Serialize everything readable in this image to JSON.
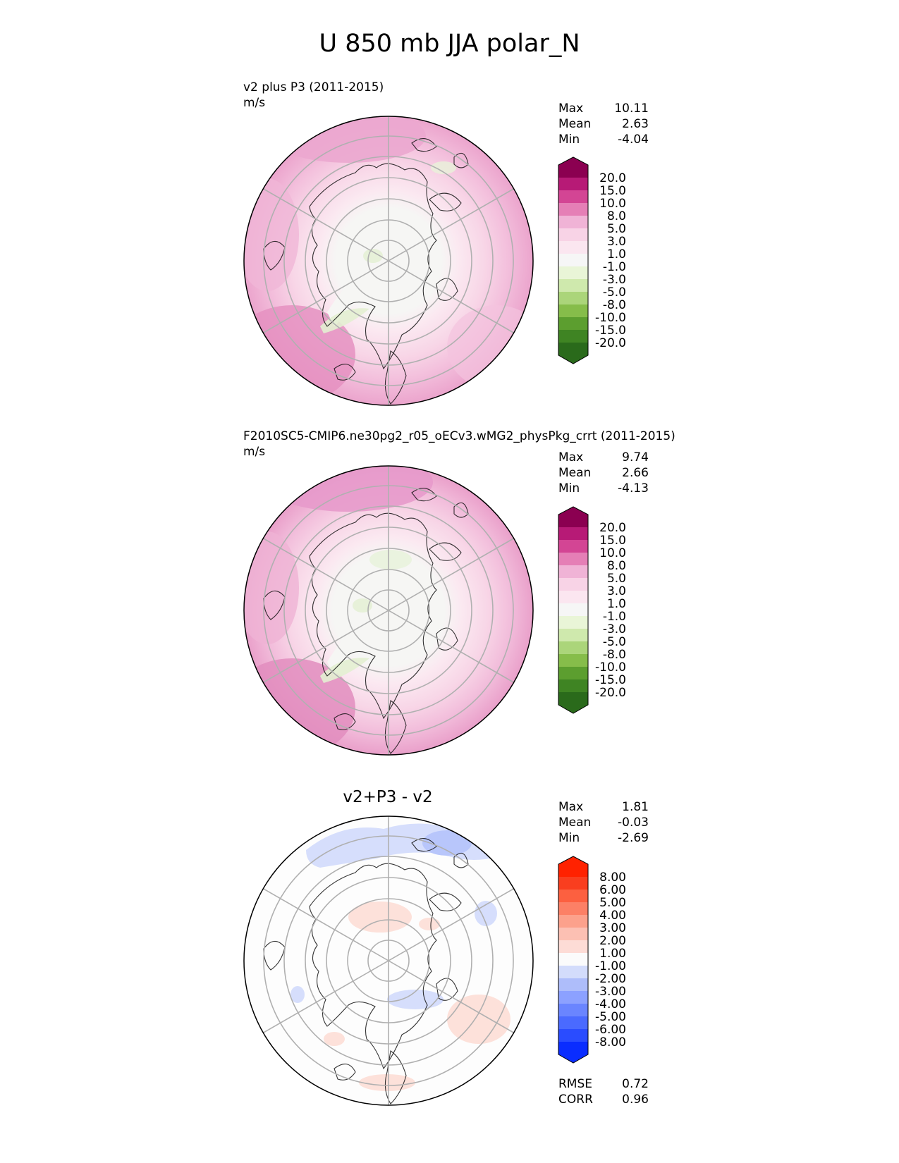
{
  "figure": {
    "title": "U 850 mb JJA polar_N"
  },
  "panels": [
    {
      "id": "test",
      "subtitle": "v2 plus P3 (2011-2015)",
      "units": "m/s",
      "stats": {
        "max_label": "Max",
        "max": "10.11",
        "mean_label": "Mean",
        "mean": "2.63",
        "min_label": "Min",
        "min": "-4.04"
      },
      "colorbar": {
        "colors": [
          "#276419",
          "#4d9221",
          "#7fbc41",
          "#b8e186",
          "#e6f5d0",
          "#f7f7f7",
          "#fde0ef",
          "#f1b6da",
          "#de77ae",
          "#c51b7d",
          "#8e0152"
        ],
        "bands": [
          "#2a6a1b",
          "#3f8423",
          "#5c9e2f",
          "#86bd4a",
          "#abd57a",
          "#cfe9ad",
          "#e9f5d7",
          "#f6f6f6",
          "#fbe6f0",
          "#f8d3e6",
          "#f0b3d6",
          "#e57fb6",
          "#d34594",
          "#b71a76",
          "#8b0051"
        ],
        "labels": [
          "20.0",
          "15.0",
          "10.0",
          "8.0",
          "5.0",
          "3.0",
          "1.0",
          "-1.0",
          "-3.0",
          "-5.0",
          "-8.0",
          "-10.0",
          "-15.0",
          "-20.0"
        ]
      }
    },
    {
      "id": "reference",
      "subtitle": "F2010SC5-CMIP6.ne30pg2_r05_oECv3.wMG2_physPkg_crrt (2011-2015)",
      "units": "m/s",
      "stats": {
        "max_label": "Max",
        "max": "9.74",
        "mean_label": "Mean",
        "mean": "2.66",
        "min_label": "Min",
        "min": "-4.13"
      },
      "colorbar": {
        "bands": [
          "#2a6a1b",
          "#3f8423",
          "#5c9e2f",
          "#86bd4a",
          "#abd57a",
          "#cfe9ad",
          "#e9f5d7",
          "#f6f6f6",
          "#fbe6f0",
          "#f8d3e6",
          "#f0b3d6",
          "#e57fb6",
          "#d34594",
          "#b71a76",
          "#8b0051"
        ],
        "labels": [
          "20.0",
          "15.0",
          "10.0",
          "8.0",
          "5.0",
          "3.0",
          "1.0",
          "-1.0",
          "-3.0",
          "-5.0",
          "-8.0",
          "-10.0",
          "-15.0",
          "-20.0"
        ]
      }
    },
    {
      "id": "difference",
      "title": "v2+P3 - v2",
      "stats": {
        "max_label": "Max",
        "max": "1.81",
        "mean_label": "Mean",
        "mean": "-0.03",
        "min_label": "Min",
        "min": "-2.69"
      },
      "metrics": {
        "rmse_label": "RMSE",
        "rmse": "0.72",
        "corr_label": "CORR",
        "corr": "0.96"
      },
      "colorbar": {
        "bands": [
          "#0a2dff",
          "#2a4cff",
          "#4a6aff",
          "#6a85ff",
          "#8ca1ff",
          "#aebdfa",
          "#d3dcfb",
          "#fbfbfb",
          "#fddcd6",
          "#fcc0b3",
          "#fca18c",
          "#fc8066",
          "#fc6040",
          "#f93e1f",
          "#ff2200"
        ],
        "labels": [
          "8.00",
          "6.00",
          "5.00",
          "4.00",
          "3.00",
          "2.00",
          "1.00",
          "-1.00",
          "-2.00",
          "-3.00",
          "-4.00",
          "-5.00",
          "-6.00",
          "-8.00"
        ]
      }
    }
  ]
}
